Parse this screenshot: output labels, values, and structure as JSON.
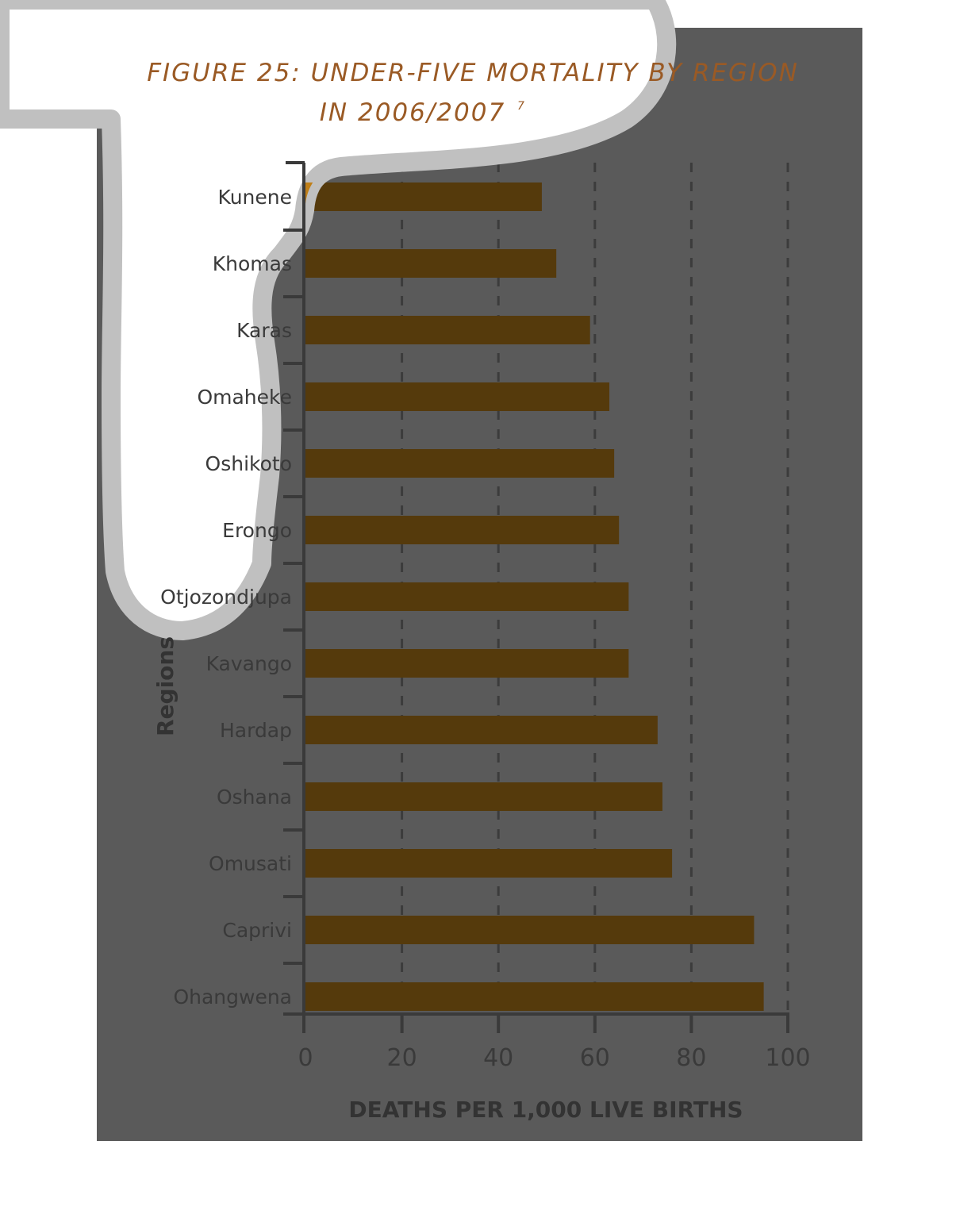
{
  "colors": {
    "background_dark": "#5a5a5a",
    "highlight_white": "#ffffff",
    "highlight_border": "#c0c0c0",
    "bar": "#553a0c",
    "bar_highlight": "#c07f18",
    "title": "#9a5a25",
    "grid": "#3c3c3c",
    "axis": "#3a3a3a"
  },
  "chart_data": {
    "type": "bar",
    "orientation": "horizontal",
    "title": "FIGURE 25: UNDER-FIVE MORTALITY BY REGION",
    "title_line2": "IN 2006/2007",
    "title_superscript": "7",
    "xlabel": "DEATHS PER 1,000 LIVE BIRTHS",
    "ylabel": "Regions",
    "xlim": [
      0,
      100
    ],
    "xticks": [
      "0",
      "20",
      "40",
      "60",
      "80",
      "100"
    ],
    "grid": "vertical dashed",
    "categories": [
      "Kunene",
      "Khomas",
      "Karas",
      "Omaheke",
      "Oshikoto",
      "Erongo",
      "Otjozondjupa",
      "Kavango",
      "Hardap",
      "Oshana",
      "Omusati",
      "Caprivi",
      "Ohangwena"
    ],
    "values": [
      49,
      52,
      59,
      63,
      64,
      65,
      67,
      67,
      73,
      74,
      76,
      93,
      95
    ]
  }
}
